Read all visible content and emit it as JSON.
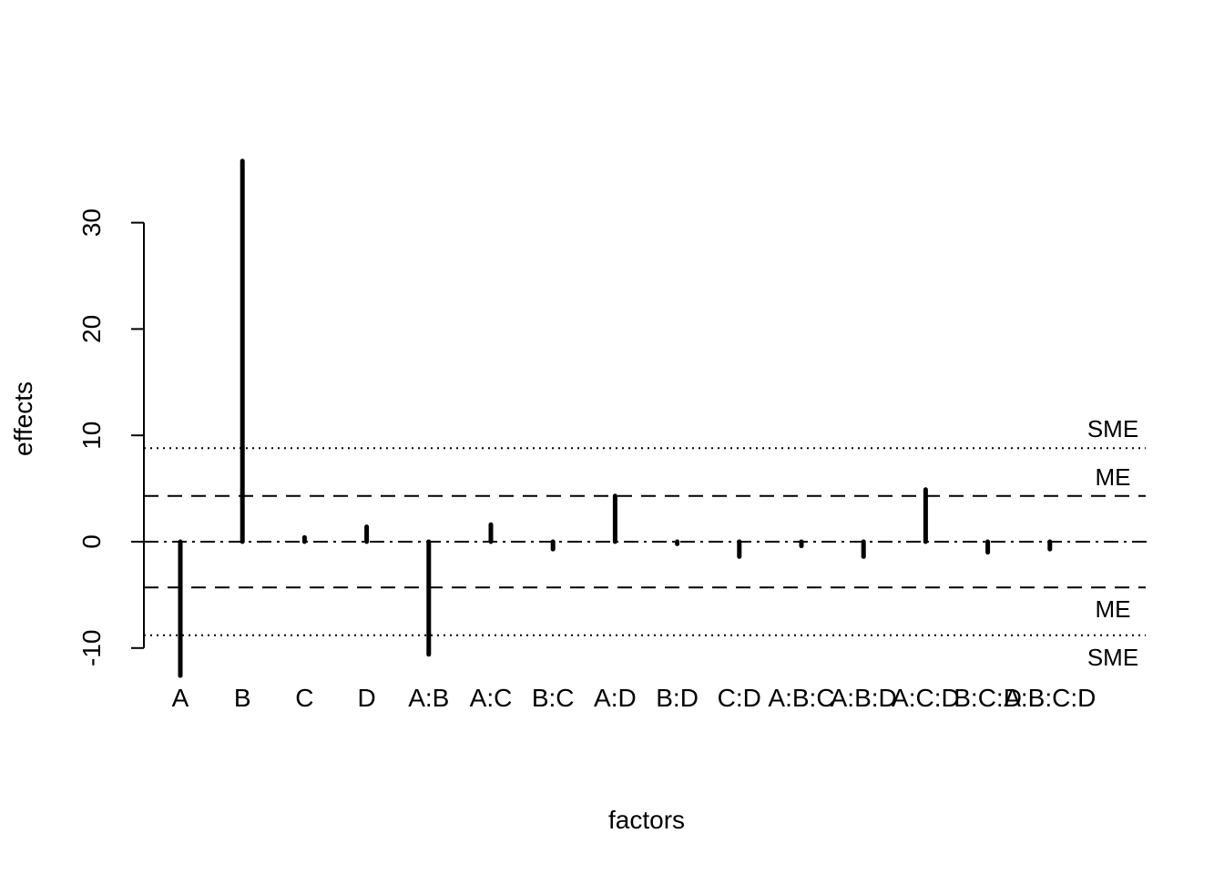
{
  "chart_data": {
    "type": "bar",
    "xlabel": "factors",
    "ylabel": "effects",
    "categories": [
      "A",
      "B",
      "C",
      "D",
      "A:B",
      "A:C",
      "B:C",
      "A:D",
      "B:D",
      "C:D",
      "A:B:C",
      "A:B:D",
      "A:C:D",
      "B:C:D",
      "A:B:C:D"
    ],
    "values": [
      -12.6,
      35.8,
      0.4,
      1.4,
      -10.6,
      1.6,
      -0.7,
      4.3,
      -0.2,
      -1.4,
      -0.4,
      -1.4,
      4.9,
      -1.0,
      -0.7
    ],
    "yticks": [
      -10,
      0,
      10,
      20,
      30
    ],
    "ylim": [
      -12.6,
      35.8
    ],
    "reference_lines": [
      {
        "label": "SME",
        "value": 8.8,
        "style": "dotted"
      },
      {
        "label": "ME",
        "value": 4.3,
        "style": "dashed"
      },
      {
        "label": "",
        "value": 0,
        "style": "dashdot"
      },
      {
        "label": "ME",
        "value": -4.3,
        "style": "dashed"
      },
      {
        "label": "SME",
        "value": -8.8,
        "style": "dotted"
      }
    ],
    "colors": {
      "bars": "#000000",
      "lines": "#000000",
      "background": "#ffffff"
    }
  }
}
